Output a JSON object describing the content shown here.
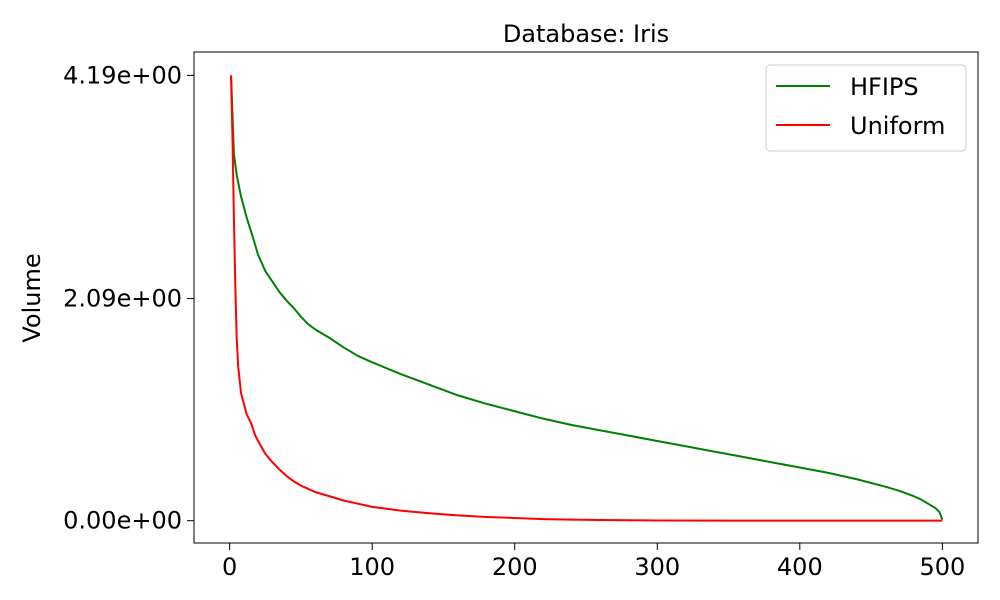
{
  "chart_data": {
    "type": "line",
    "title": "Database: Iris",
    "xlabel": "",
    "ylabel": "Volume",
    "xlim": [
      -25,
      525
    ],
    "ylim": [
      -0.21,
      4.41
    ],
    "x_ticks": [
      0,
      100,
      200,
      300,
      400,
      500
    ],
    "x_tick_labels": [
      "0",
      "100",
      "200",
      "300",
      "400",
      "500"
    ],
    "y_ticks": [
      0,
      2.09,
      4.19
    ],
    "y_tick_labels": [
      "0.00e+00",
      "2.09e+00",
      "4.19e+00"
    ],
    "grid": false,
    "legend_position": "upper right",
    "series": [
      {
        "name": "HFIPS",
        "color": "#008000",
        "x": [
          1,
          3,
          5,
          8,
          12,
          16,
          20,
          25,
          30,
          35,
          40,
          45,
          50,
          55,
          60,
          70,
          80,
          90,
          100,
          120,
          140,
          160,
          180,
          200,
          220,
          240,
          260,
          280,
          300,
          320,
          340,
          360,
          380,
          400,
          420,
          440,
          460,
          470,
          480,
          485,
          490,
          495,
          498,
          500
        ],
        "y": [
          4.19,
          3.45,
          3.25,
          3.05,
          2.85,
          2.68,
          2.5,
          2.35,
          2.25,
          2.15,
          2.07,
          2.0,
          1.92,
          1.85,
          1.8,
          1.72,
          1.63,
          1.55,
          1.49,
          1.38,
          1.28,
          1.18,
          1.1,
          1.03,
          0.96,
          0.9,
          0.85,
          0.8,
          0.75,
          0.7,
          0.65,
          0.6,
          0.55,
          0.5,
          0.45,
          0.39,
          0.32,
          0.28,
          0.23,
          0.2,
          0.16,
          0.12,
          0.08,
          0.01
        ]
      },
      {
        "name": "Uniform",
        "color": "#ff0000",
        "x": [
          1,
          2,
          3,
          4,
          5,
          6,
          8,
          10,
          12,
          15,
          18,
          20,
          25,
          30,
          35,
          40,
          45,
          50,
          55,
          60,
          70,
          80,
          90,
          100,
          120,
          140,
          160,
          180,
          200,
          220,
          240,
          260,
          280,
          300,
          350,
          400,
          450,
          500
        ],
        "y": [
          4.19,
          3.6,
          2.85,
          2.2,
          1.7,
          1.45,
          1.2,
          1.1,
          1.0,
          0.92,
          0.8,
          0.75,
          0.63,
          0.55,
          0.48,
          0.42,
          0.37,
          0.33,
          0.3,
          0.27,
          0.23,
          0.19,
          0.16,
          0.13,
          0.095,
          0.07,
          0.05,
          0.035,
          0.025,
          0.015,
          0.01,
          0.006,
          0.004,
          0.002,
          0.001,
          0.0,
          0.0,
          0.0
        ]
      }
    ]
  }
}
